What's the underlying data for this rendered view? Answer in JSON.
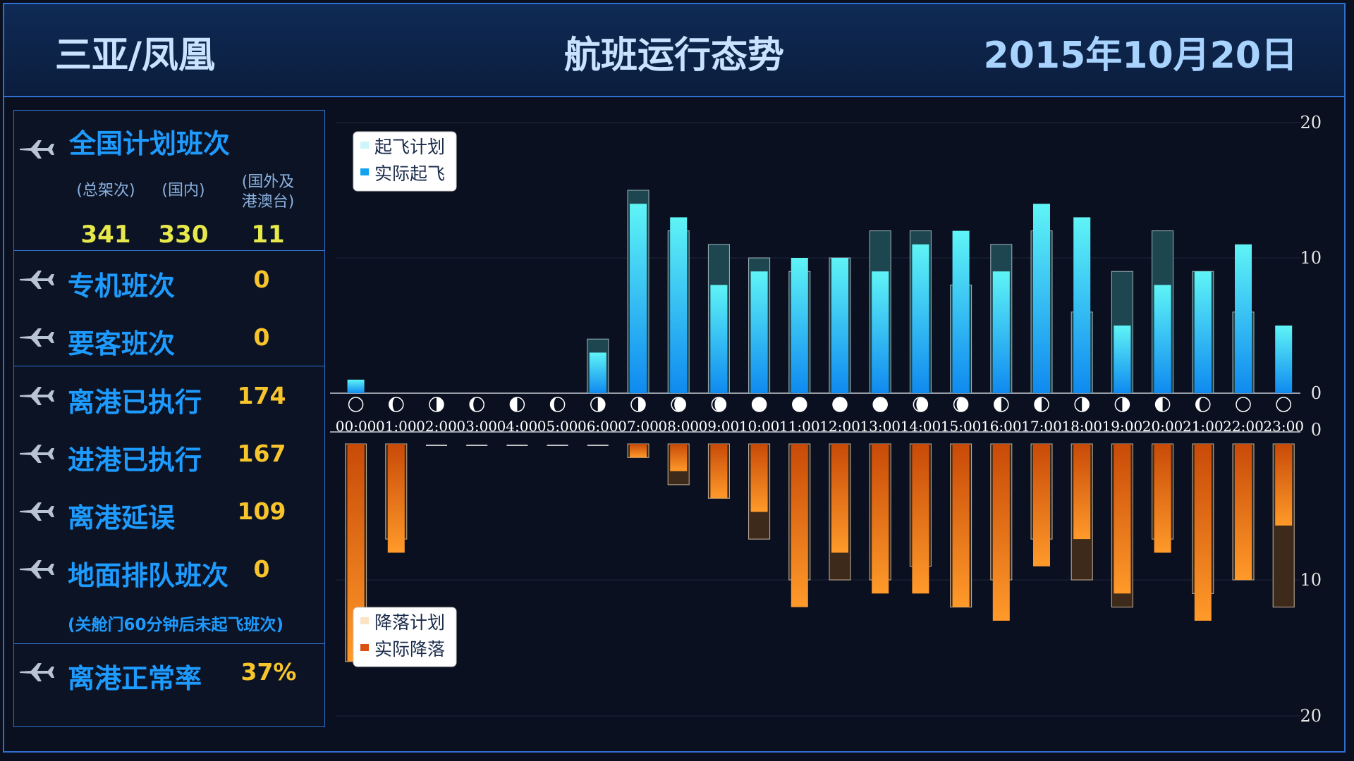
{
  "header": {
    "location": "三亚/凤凰",
    "title": "航班运行态势",
    "date": "2015年10月20日"
  },
  "panel": {
    "national": {
      "label": "全国计划班次",
      "cols": [
        {
          "label": "(总架次)",
          "value": "341"
        },
        {
          "label": "(国内)",
          "value": "330"
        },
        {
          "label": "(国外及\n港澳台)",
          "value": "11"
        }
      ]
    },
    "stats": [
      {
        "label": "专机班次",
        "value": "0"
      },
      {
        "label": "要客班次",
        "value": "0"
      },
      {
        "label": "离港已执行",
        "value": "174"
      },
      {
        "label": "进港已执行",
        "value": "167"
      },
      {
        "label": "离港延误",
        "value": "109"
      },
      {
        "label": "地面排队班次",
        "value": "0"
      }
    ],
    "queue_note": "(关舱门60分钟后未起飞班次)",
    "on_time": {
      "label": "离港正常率",
      "value": "37%"
    }
  },
  "colors": {
    "accent_blue": "#1e9bff",
    "value_yellow": "#f7c42c",
    "border_blue": "#2f6fd0",
    "departure_plan": "#1e4650",
    "departure_actual": "#29c9f5",
    "arrival_plan": "#3d2a1a",
    "arrival_actual": "#f07a1c"
  },
  "chart_data": {
    "type": "bar",
    "categories": [
      "00:00",
      "01:00",
      "02:00",
      "03:00",
      "04:00",
      "05:00",
      "06:00",
      "07:00",
      "08:00",
      "09:00",
      "10:00",
      "11:00",
      "12:00",
      "13:00",
      "14:00",
      "15:00",
      "16:00",
      "17:00",
      "18:00",
      "19:00",
      "20:00",
      "21:00",
      "22:00",
      "23:00"
    ],
    "top": {
      "ylim": [
        0,
        20
      ],
      "ticks": [
        "20",
        "10",
        "0"
      ],
      "legend": [
        "起飞计划",
        "实际起飞"
      ],
      "series": [
        {
          "name": "起飞计划",
          "values": [
            0,
            0,
            0,
            0,
            0,
            0,
            4,
            15,
            12,
            11,
            10,
            9,
            10,
            12,
            12,
            8,
            11,
            12,
            6,
            9,
            12,
            9,
            6,
            0
          ]
        },
        {
          "name": "实际起飞",
          "values": [
            1,
            0,
            0,
            0,
            0,
            0,
            3,
            14,
            13,
            8,
            9,
            10,
            10,
            9,
            11,
            12,
            9,
            14,
            13,
            5,
            8,
            9,
            11,
            5
          ]
        }
      ]
    },
    "bottom": {
      "ylim": [
        0,
        20
      ],
      "ticks": [
        "0",
        "10",
        "20"
      ],
      "legend": [
        "降落计划",
        "实际降落"
      ],
      "series": [
        {
          "name": "降落计划",
          "values": [
            16,
            7,
            0,
            0,
            0,
            0,
            0,
            1,
            3,
            4,
            7,
            10,
            10,
            10,
            9,
            12,
            10,
            7,
            10,
            12,
            7,
            11,
            10,
            12
          ]
        },
        {
          "name": "实际降落",
          "values": [
            16,
            8,
            0,
            0,
            0,
            0,
            0,
            1,
            2,
            4,
            5,
            12,
            8,
            11,
            11,
            12,
            13,
            9,
            7,
            11,
            8,
            13,
            10,
            6
          ]
        }
      ]
    },
    "moon_phases": [
      "new",
      "waning",
      "first_quarter_right",
      "waning",
      "last_quarter_left",
      "waning",
      "first_quarter_right",
      "half_right",
      "mostly_full",
      "mostly_full",
      "full",
      "full",
      "full",
      "full",
      "mostly_full",
      "mostly_full",
      "half_left",
      "half_left",
      "half_right",
      "half_right",
      "half_left",
      "crescent",
      "new",
      "new"
    ]
  }
}
